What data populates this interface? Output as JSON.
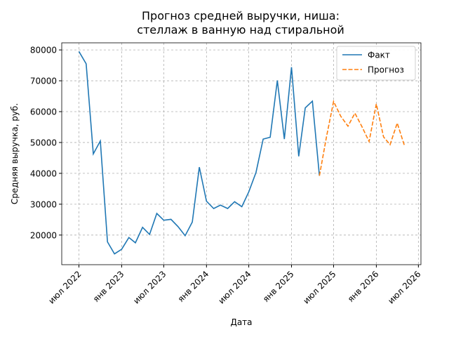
{
  "chart_data": {
    "type": "line",
    "title": "Прогноз средней выручки, ниша:\nстеллаж в ванную над стиральной",
    "xlabel": "Дата",
    "ylabel": "Средняя выручка, руб.",
    "x": [
      "2022-07",
      "2022-08",
      "2022-09",
      "2022-10",
      "2022-11",
      "2022-12",
      "2023-01",
      "2023-02",
      "2023-03",
      "2023-04",
      "2023-05",
      "2023-06",
      "2023-07",
      "2023-08",
      "2023-09",
      "2023-10",
      "2023-11",
      "2023-12",
      "2024-01",
      "2024-02",
      "2024-03",
      "2024-04",
      "2024-05",
      "2024-06",
      "2024-07",
      "2024-08",
      "2024-09",
      "2024-10",
      "2024-11",
      "2024-12",
      "2025-01",
      "2025-02",
      "2025-03",
      "2025-04",
      "2025-05",
      "2025-06",
      "2025-07",
      "2025-08",
      "2025-09",
      "2025-10",
      "2025-11",
      "2025-12",
      "2026-01",
      "2026-02",
      "2026-03",
      "2026-04",
      "2026-05"
    ],
    "series": [
      {
        "name": "Факт",
        "color": "#1f77b4",
        "dash": false,
        "values": [
          79500,
          75500,
          46300,
          50500,
          17800,
          13900,
          15400,
          19200,
          17500,
          22500,
          20200,
          27000,
          24800,
          25100,
          22700,
          19800,
          24200,
          42000,
          31000,
          28600,
          29700,
          28600,
          30800,
          29200,
          34000,
          40300,
          51100,
          51700,
          70100,
          51100,
          74400,
          45500,
          61200,
          63400,
          39200,
          null,
          null,
          null,
          null,
          null,
          null,
          null,
          null,
          null,
          null,
          null,
          null
        ]
      },
      {
        "name": "Прогноз",
        "color": "#ff7f0e",
        "dash": true,
        "values": [
          null,
          null,
          null,
          null,
          null,
          null,
          null,
          null,
          null,
          null,
          null,
          null,
          null,
          null,
          null,
          null,
          null,
          null,
          null,
          null,
          null,
          null,
          null,
          null,
          null,
          null,
          null,
          null,
          null,
          null,
          null,
          null,
          null,
          null,
          39200,
          52000,
          63300,
          58500,
          55300,
          59500,
          55000,
          50300,
          62500,
          51800,
          49300,
          56300,
          49200
        ]
      }
    ],
    "xlim": [
      "2022-04-18",
      "2026-07-12"
    ],
    "xticks": [
      {
        "value": "2022-07",
        "label": "июл 2022"
      },
      {
        "value": "2023-01",
        "label": "янв 2023"
      },
      {
        "value": "2023-07",
        "label": "июл 2023"
      },
      {
        "value": "2024-01",
        "label": "янв 2024"
      },
      {
        "value": "2024-07",
        "label": "июл 2024"
      },
      {
        "value": "2025-01",
        "label": "янв 2025"
      },
      {
        "value": "2025-07",
        "label": "июл 2025"
      },
      {
        "value": "2026-01",
        "label": "янв 2026"
      },
      {
        "value": "2026-07",
        "label": "июл 2026"
      }
    ],
    "ylim": [
      10400,
      82300
    ],
    "yticks": [
      20000,
      30000,
      40000,
      50000,
      60000,
      70000,
      80000
    ],
    "grid": true,
    "legend": "upper right"
  }
}
